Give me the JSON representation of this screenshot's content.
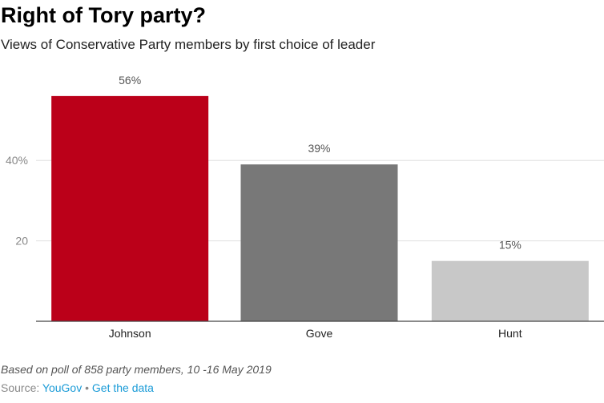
{
  "chart_data": {
    "type": "bar",
    "title": "Right of Tory party?",
    "subtitle": "Views of Conservative Party members by first choice of leader",
    "categories": [
      "Johnson",
      "Gove",
      "Hunt"
    ],
    "values": [
      56,
      39,
      15
    ],
    "data_labels": [
      "56%",
      "39%",
      "15%"
    ],
    "colors": [
      "#bb0019",
      "#787878",
      "#c8c8c8"
    ],
    "yticks": [
      {
        "value": 20,
        "label": "20"
      },
      {
        "value": 40,
        "label": "40%"
      }
    ],
    "ylim": [
      0,
      60
    ],
    "grid": true,
    "xlabel": "",
    "ylabel": ""
  },
  "footer": {
    "note": "Based on poll of 858 party members, 10 -16 May 2019",
    "source_label": "Source:",
    "source_link": "YouGov",
    "separator": "•",
    "data_link": "Get the data"
  }
}
